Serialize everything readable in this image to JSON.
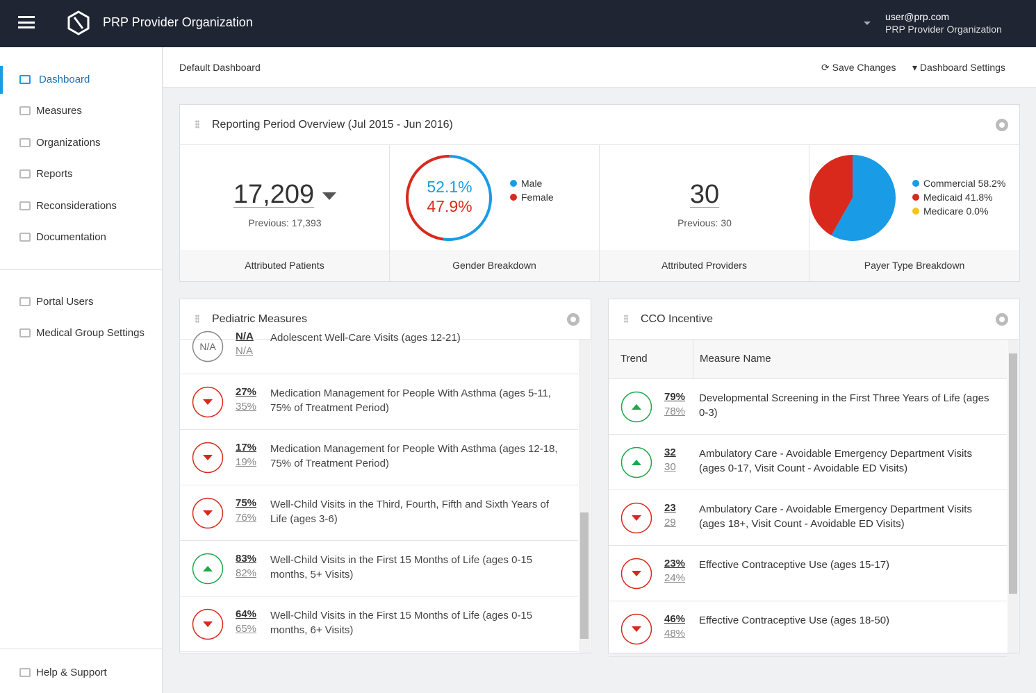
{
  "topbar": {
    "app_name": "PRP Provider Organization",
    "user_email": "user@prp.com",
    "user_org": "PRP Provider Organization"
  },
  "sidebar": {
    "items": [
      "Dashboard",
      "Measures",
      "Organizations",
      "Reports",
      "Reconsiderations",
      "Documentation"
    ],
    "admin_items": [
      "Portal Users",
      "Medical Group Settings"
    ],
    "footer_item": "Help & Support"
  },
  "toolbar": {
    "title": "Default Dashboard",
    "save": "Save Changes",
    "settings": "Dashboard Settings"
  },
  "overview": {
    "title": "Reporting Period Overview (Jul 2015 - Jun 2016)",
    "patients": {
      "value": "17,209",
      "previous": "Previous: 17,393",
      "caption": "Attributed Patients"
    },
    "gender": {
      "type": "donut",
      "categories": [
        "Male",
        "Female"
      ],
      "values": [
        52.1,
        47.9
      ],
      "value_labels": [
        "52.1%",
        "47.9%"
      ],
      "colors": [
        "#1a9be6",
        "#d9291c"
      ],
      "caption": "Gender Breakdown"
    },
    "providers": {
      "value": "30",
      "previous": "Previous: 30",
      "caption": "Attributed Providers"
    },
    "payer": {
      "type": "pie",
      "categories": [
        "Commercial",
        "Medicaid",
        "Medicare"
      ],
      "values": [
        58.2,
        41.8,
        0.0
      ],
      "value_labels": [
        "58.2%",
        "41.8%",
        "0.0%"
      ],
      "colors": [
        "#1a9be6",
        "#d9291c",
        "#f5c518"
      ],
      "caption": "Payer Type Breakdown"
    }
  },
  "pediatric": {
    "title": "Pediatric Measures",
    "rows": [
      {
        "trend": "none",
        "badge": "N/A",
        "current": "N/A",
        "previous": "N/A",
        "name": "Adolescent Well-Care Visits (ages 12-21)"
      },
      {
        "trend": "down",
        "current": "27%",
        "previous": "35%",
        "name": "Medication Management for People With Asthma (ages 5-11, 75% of Treatment Period)"
      },
      {
        "trend": "down",
        "current": "17%",
        "previous": "19%",
        "name": "Medication Management for People With Asthma (ages 12-18, 75% of Treatment Period)"
      },
      {
        "trend": "down",
        "current": "75%",
        "previous": "76%",
        "name": "Well-Child Visits in the Third, Fourth, Fifth and Sixth Years of Life (ages 3-6)"
      },
      {
        "trend": "up",
        "current": "83%",
        "previous": "82%",
        "name": "Well-Child Visits in the First 15 Months of Life (ages 0-15 months, 5+ Visits)"
      },
      {
        "trend": "down",
        "current": "64%",
        "previous": "65%",
        "name": "Well-Child Visits in the First 15 Months of Life (ages 0-15 months, 6+ Visits)"
      }
    ]
  },
  "cco": {
    "title": "CCO Incentive",
    "columns": [
      "Trend",
      "Measure Name"
    ],
    "rows": [
      {
        "trend": "up",
        "current": "79%",
        "previous": "78%",
        "name": "Developmental Screening in the First Three Years of Life (ages 0-3)"
      },
      {
        "trend": "up",
        "current": "32",
        "previous": "30",
        "name": "Ambulatory Care - Avoidable Emergency Department Visits (ages 0-17, Visit Count - Avoidable ED Visits)"
      },
      {
        "trend": "down",
        "current": "23",
        "previous": "29",
        "name": "Ambulatory Care - Avoidable Emergency Department Visits (ages 18+, Visit Count - Avoidable ED Visits)"
      },
      {
        "trend": "down",
        "current": "23%",
        "previous": "24%",
        "name": "Effective Contraceptive Use (ages 15-17)"
      },
      {
        "trend": "down",
        "current": "46%",
        "previous": "48%",
        "name": "Effective Contraceptive Use (ages 18-50)"
      }
    ]
  }
}
